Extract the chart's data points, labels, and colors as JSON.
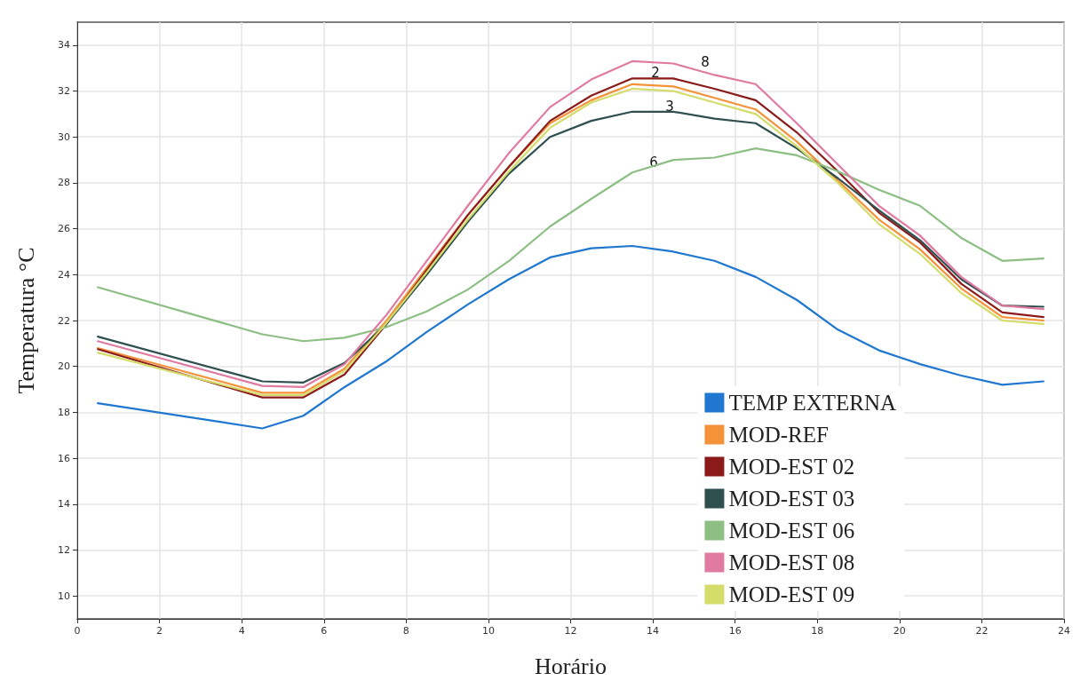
{
  "chart_data": {
    "type": "line",
    "xlabel": "Horário",
    "ylabel": "Temperatura °C",
    "x": [
      0.5,
      4.5,
      5.5,
      6.5,
      7.5,
      8.5,
      9.5,
      10.5,
      11.5,
      12.5,
      13.5,
      14.5,
      15.5,
      16.5,
      17.5,
      18.5,
      19.5,
      20.5,
      21.5,
      22.5,
      23.5
    ],
    "xlim": [
      0,
      24
    ],
    "xticks": [
      0,
      2,
      4,
      6,
      8,
      10,
      12,
      14,
      16,
      18,
      20,
      22,
      24
    ],
    "ylim": [
      9,
      35
    ],
    "yticks": [
      10,
      12,
      14,
      16,
      18,
      20,
      22,
      24,
      26,
      28,
      30,
      32,
      34
    ],
    "grid": true,
    "legend": "bottom right",
    "marker": "none",
    "line_style": "solid",
    "series": [
      {
        "name": "TEMP EXTERNA",
        "color": "#1f77d0",
        "values": [
          18.4,
          17.3,
          17.85,
          19.1,
          20.2,
          21.5,
          22.7,
          23.8,
          24.75,
          25.15,
          25.25,
          25.0,
          24.6,
          23.9,
          22.9,
          21.6,
          20.7,
          20.1,
          19.6,
          19.2,
          19.35
        ]
      },
      {
        "name": "MOD-REF",
        "color": "#f4923a",
        "values": [
          20.8,
          18.85,
          18.85,
          19.9,
          21.95,
          24.3,
          26.6,
          28.7,
          30.6,
          31.6,
          32.3,
          32.2,
          31.7,
          31.2,
          29.8,
          28.1,
          26.4,
          25.1,
          23.4,
          22.15,
          22.0
        ]
      },
      {
        "name": "MOD-EST 02",
        "color": "#8b1a1a",
        "values": [
          20.75,
          18.65,
          18.65,
          19.65,
          21.8,
          24.2,
          26.6,
          28.7,
          30.7,
          31.8,
          32.55,
          32.55,
          32.1,
          31.6,
          30.2,
          28.5,
          26.7,
          25.4,
          23.6,
          22.35,
          22.15
        ]
      },
      {
        "name": "MOD-EST 03",
        "color": "#2f4f4f",
        "values": [
          21.3,
          19.35,
          19.3,
          20.15,
          21.8,
          24.0,
          26.3,
          28.4,
          30.0,
          30.7,
          31.1,
          31.1,
          30.8,
          30.6,
          29.5,
          28.2,
          26.8,
          25.5,
          23.8,
          22.65,
          22.6
        ]
      },
      {
        "name": "MOD-EST 06",
        "color": "#8dbf85",
        "values": [
          23.45,
          21.4,
          21.1,
          21.25,
          21.7,
          22.4,
          23.35,
          24.6,
          26.1,
          27.3,
          28.45,
          29.0,
          29.1,
          29.5,
          29.2,
          28.5,
          27.7,
          27.0,
          25.6,
          24.6,
          24.7
        ]
      },
      {
        "name": "MOD-EST 08",
        "color": "#e07aa0",
        "values": [
          21.1,
          19.15,
          19.1,
          20.1,
          22.2,
          24.6,
          27.0,
          29.3,
          31.3,
          32.5,
          33.3,
          33.2,
          32.7,
          32.3,
          30.6,
          28.8,
          27.0,
          25.7,
          23.9,
          22.65,
          22.5
        ]
      },
      {
        "name": "MOD-EST 09",
        "color": "#d4dc6a",
        "values": [
          20.6,
          18.75,
          18.75,
          19.8,
          21.85,
          24.1,
          26.4,
          28.5,
          30.4,
          31.5,
          32.1,
          32.0,
          31.5,
          31.0,
          29.6,
          28.0,
          26.2,
          24.9,
          23.2,
          22.0,
          21.85
        ]
      }
    ],
    "annotations": [
      "2",
      "8",
      "3",
      "6"
    ]
  }
}
